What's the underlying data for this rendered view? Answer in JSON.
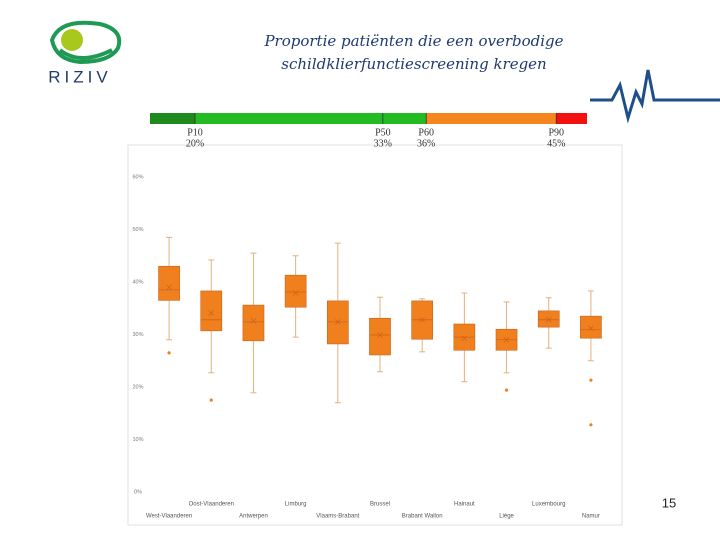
{
  "logo_text": "RIZIV",
  "page_number": "15",
  "chart_data": {
    "type": "box",
    "title": [
      "Proportie patiënten die een overbodige",
      "schildklierfunctiescreening kregen"
    ],
    "percentile_bar": {
      "colors": [
        "#1e8a1e",
        "#22bb22",
        "#f5861f",
        "#f21010"
      ],
      "markers": [
        {
          "name": "P10",
          "value": 20,
          "label": "20%"
        },
        {
          "name": "P50",
          "value": 33,
          "label": "33%"
        },
        {
          "name": "P60",
          "value": 36,
          "label": "36%"
        },
        {
          "name": "P90",
          "value": 45,
          "label": "45%"
        }
      ]
    },
    "categories": [
      "West-Vlaanderen",
      "Oost-Vlaanderen",
      "Antwerpen",
      "Limburg",
      "Vlaams-Brabant",
      "Brussel",
      "Brabant Wallon",
      "Hainaut",
      "Liège",
      "Luxembourg",
      "Namur"
    ],
    "color": "#f07f1e",
    "boxes": [
      {
        "min": 29,
        "q1": 36.5,
        "median": 38.5,
        "q3": 43,
        "max": 48.5,
        "mean": 39,
        "outliers": [
          26.5
        ]
      },
      {
        "min": 22.7,
        "q1": 30.7,
        "median": 32.8,
        "q3": 38.3,
        "max": 44.2,
        "mean": 34.1,
        "outliers": [
          17.5
        ]
      },
      {
        "min": 18.9,
        "q1": 28.8,
        "median": 32.4,
        "q3": 35.6,
        "max": 45.5,
        "mean": 32.6,
        "outliers": []
      },
      {
        "min": 29.5,
        "q1": 35.2,
        "median": 38.1,
        "q3": 41.3,
        "max": 45,
        "mean": 37.9,
        "outliers": []
      },
      {
        "min": 17,
        "q1": 28.2,
        "median": 32.4,
        "q3": 36.4,
        "max": 47.4,
        "mean": 32.4,
        "outliers": []
      },
      {
        "min": 22.9,
        "q1": 26.1,
        "median": 29.9,
        "q3": 33.1,
        "max": 37.1,
        "mean": 29.9,
        "outliers": []
      },
      {
        "min": 26.7,
        "q1": 29.1,
        "median": 32.8,
        "q3": 36.4,
        "max": 36.8,
        "mean": 32.8,
        "outliers": []
      },
      {
        "min": 21,
        "q1": 27,
        "median": 29.5,
        "q3": 32,
        "max": 37.9,
        "mean": 29.3,
        "outliers": []
      },
      {
        "min": 22.7,
        "q1": 27,
        "median": 29,
        "q3": 31,
        "max": 36.2,
        "mean": 29,
        "outliers": [
          19.4
        ]
      },
      {
        "min": 27.4,
        "q1": 31.4,
        "median": 32.8,
        "q3": 34.5,
        "max": 37,
        "mean": 32.8,
        "outliers": []
      },
      {
        "min": 25,
        "q1": 29.3,
        "median": 30.9,
        "q3": 33.5,
        "max": 38.3,
        "mean": 31.2,
        "outliers": [
          21.3,
          12.8
        ]
      }
    ],
    "ylim": [
      0,
      60
    ],
    "yticks": [
      {
        "value": 0,
        "label": "0%"
      },
      {
        "value": 10,
        "label": "10%"
      },
      {
        "value": 20,
        "label": "20%"
      },
      {
        "value": 30,
        "label": "30%"
      },
      {
        "value": 40,
        "label": "40%"
      },
      {
        "value": 50,
        "label": "50%"
      },
      {
        "value": 60,
        "label": "60%"
      }
    ],
    "grid": false
  }
}
